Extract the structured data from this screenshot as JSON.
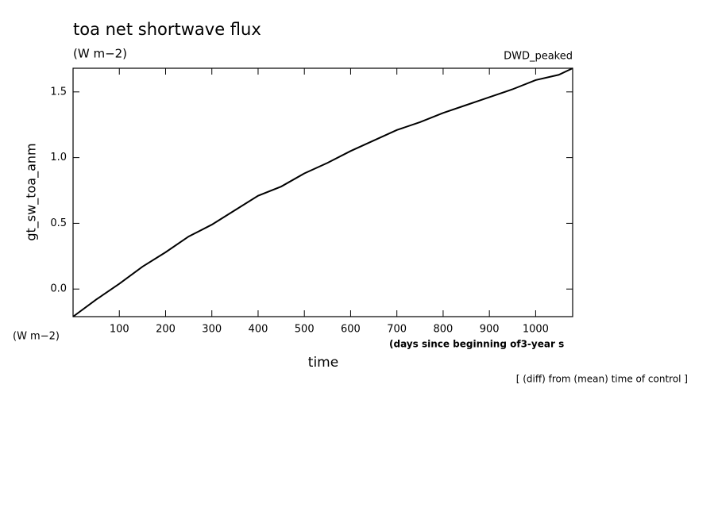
{
  "chart_data": {
    "type": "line",
    "title": "toa net shortwave flux",
    "subtitle": "(W m−2)",
    "annotation": "DWD_peaked",
    "y_label": "gt_sw_toa_anm",
    "y_unit": "(W m−2)",
    "x_unit": "(days since beginning of3-year s",
    "x_label": "time",
    "note": "[ (diff) from (mean) time of control ]",
    "x": [
      0,
      50,
      100,
      150,
      200,
      250,
      300,
      350,
      400,
      450,
      500,
      550,
      600,
      650,
      700,
      750,
      800,
      850,
      900,
      950,
      1000,
      1050,
      1080
    ],
    "series": [
      {
        "name": "gt_sw_toa_anm",
        "color": "#000000",
        "values": [
          -0.21,
          -0.08,
          0.04,
          0.17,
          0.28,
          0.4,
          0.49,
          0.6,
          0.71,
          0.78,
          0.88,
          0.96,
          1.05,
          1.13,
          1.21,
          1.27,
          1.34,
          1.4,
          1.46,
          1.52,
          1.59,
          1.63,
          1.68
        ]
      }
    ],
    "xlim": [
      0,
      1080
    ],
    "ylim": [
      -0.21,
      1.68
    ],
    "xticks": [
      100,
      200,
      300,
      400,
      500,
      600,
      700,
      800,
      900,
      1000
    ],
    "yticks": [
      {
        "value": 0,
        "label": "0.0"
      },
      0.5,
      {
        "value": 1,
        "label": "1.0"
      },
      1.5
    ]
  }
}
